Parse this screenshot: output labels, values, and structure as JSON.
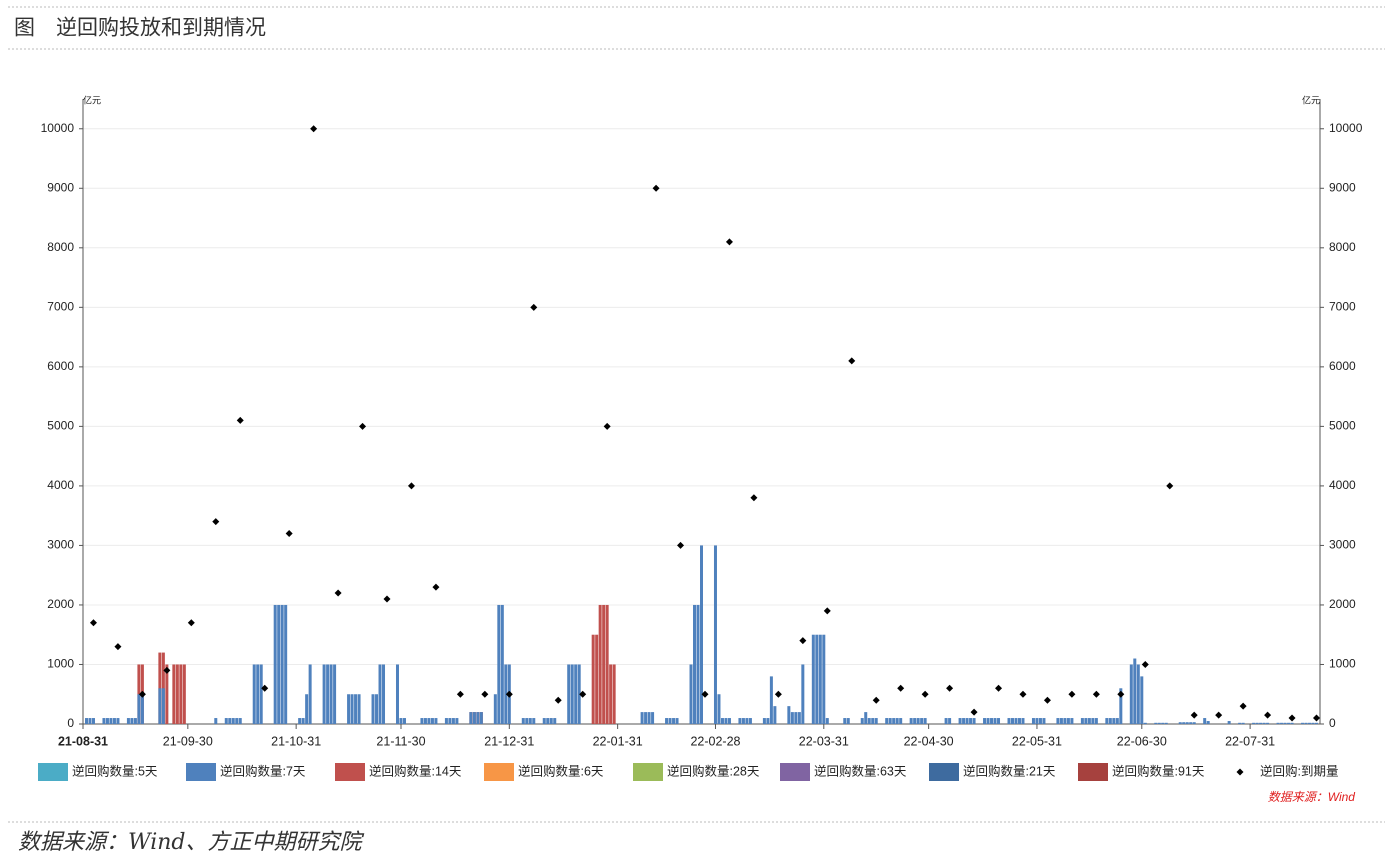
{
  "chart_data": {
    "type": "bar",
    "title": "图　逆回购投放和到期情况",
    "y_label": "亿元",
    "y2_label": "亿元",
    "source_note": "数据来源：Wind",
    "xlim": [
      "21-08-31",
      "22-08-20"
    ],
    "xticks": [
      "21-08-31",
      "21-09-30",
      "21-10-31",
      "21-11-30",
      "21-12-31",
      "22-01-31",
      "22-02-28",
      "22-03-31",
      "22-04-30",
      "22-05-31",
      "22-06-30",
      "22-07-31"
    ],
    "ylim": [
      0,
      10500
    ],
    "yticks": [
      0,
      1000,
      2000,
      3000,
      4000,
      5000,
      6000,
      7000,
      8000,
      9000,
      10000
    ],
    "y2lim": [
      0,
      10500
    ],
    "y2ticks": [
      0,
      1000,
      2000,
      3000,
      4000,
      5000,
      6000,
      7000,
      8000,
      9000,
      10000
    ],
    "grid": true,
    "series": [
      {
        "name": "逆回购数量:5天",
        "color": "#4bacc6",
        "type": "bar",
        "x": [],
        "values": []
      },
      {
        "name": "逆回购数量:7天",
        "color": "#4f81bd",
        "type": "bar",
        "x": [
          "21-09-01",
          "21-09-02",
          "21-09-03",
          "21-09-06",
          "21-09-07",
          "21-09-08",
          "21-09-09",
          "21-09-10",
          "21-09-13",
          "21-09-14",
          "21-09-15",
          "21-09-16",
          "21-09-17",
          "21-09-22",
          "21-09-23",
          "21-10-08",
          "21-10-11",
          "21-10-12",
          "21-10-13",
          "21-10-14",
          "21-10-15",
          "21-10-19",
          "21-10-20",
          "21-10-21",
          "21-10-25",
          "21-10-26",
          "21-10-27",
          "21-10-28",
          "21-11-01",
          "21-11-02",
          "21-11-03",
          "21-11-04",
          "21-11-08",
          "21-11-09",
          "21-11-10",
          "21-11-11",
          "21-11-15",
          "21-11-16",
          "21-11-17",
          "21-11-18",
          "21-11-22",
          "21-11-23",
          "21-11-24",
          "21-11-25",
          "21-11-29",
          "21-11-30",
          "21-12-01",
          "21-12-06",
          "21-12-07",
          "21-12-08",
          "21-12-09",
          "21-12-10",
          "21-12-13",
          "21-12-14",
          "21-12-15",
          "21-12-16",
          "21-12-20",
          "21-12-21",
          "21-12-22",
          "21-12-23",
          "21-12-27",
          "21-12-28",
          "21-12-29",
          "21-12-30",
          "21-12-31",
          "22-01-04",
          "22-01-05",
          "22-01-06",
          "22-01-07",
          "22-01-10",
          "22-01-11",
          "22-01-12",
          "22-01-13",
          "22-01-17",
          "22-01-18",
          "22-01-19",
          "22-01-20",
          "22-02-07",
          "22-02-08",
          "22-02-09",
          "22-02-10",
          "22-02-14",
          "22-02-15",
          "22-02-16",
          "22-02-17",
          "22-02-21",
          "22-02-22",
          "22-02-23",
          "22-02-24",
          "22-02-28",
          "22-03-01",
          "22-03-02",
          "22-03-03",
          "22-03-04",
          "22-03-07",
          "22-03-08",
          "22-03-09",
          "22-03-10",
          "22-03-14",
          "22-03-15",
          "22-03-16",
          "22-03-17",
          "22-03-21",
          "22-03-22",
          "22-03-23",
          "22-03-24",
          "22-03-25",
          "22-03-28",
          "22-03-29",
          "22-03-30",
          "22-03-31",
          "22-04-01",
          "22-04-06",
          "22-04-07",
          "22-04-11",
          "22-04-12",
          "22-04-13",
          "22-04-14",
          "22-04-15",
          "22-04-18",
          "22-04-19",
          "22-04-20",
          "22-04-21",
          "22-04-22",
          "22-04-25",
          "22-04-26",
          "22-04-27",
          "22-04-28",
          "22-04-29",
          "22-05-05",
          "22-05-06",
          "22-05-09",
          "22-05-10",
          "22-05-11",
          "22-05-12",
          "22-05-13",
          "22-05-16",
          "22-05-17",
          "22-05-18",
          "22-05-19",
          "22-05-20",
          "22-05-23",
          "22-05-24",
          "22-05-25",
          "22-05-26",
          "22-05-27",
          "22-05-30",
          "22-05-31",
          "22-06-01",
          "22-06-02",
          "22-06-06",
          "22-06-07",
          "22-06-08",
          "22-06-09",
          "22-06-10",
          "22-06-13",
          "22-06-14",
          "22-06-15",
          "22-06-16",
          "22-06-17",
          "22-06-20",
          "22-06-21",
          "22-06-22",
          "22-06-23",
          "22-06-24",
          "22-06-27",
          "22-06-28",
          "22-06-29",
          "22-06-30",
          "22-07-01",
          "22-07-04",
          "22-07-05",
          "22-07-06",
          "22-07-07",
          "22-07-11",
          "22-07-12",
          "22-07-13",
          "22-07-14",
          "22-07-15",
          "22-07-18",
          "22-07-19",
          "22-07-25",
          "22-07-28",
          "22-07-29",
          "22-08-01",
          "22-08-02",
          "22-08-03",
          "22-08-04",
          "22-08-05",
          "22-08-08",
          "22-08-09",
          "22-08-10",
          "22-08-11",
          "22-08-12",
          "22-08-15",
          "22-08-16",
          "22-08-17",
          "22-08-18",
          "22-08-19"
        ],
        "values": [
          100,
          100,
          100,
          100,
          100,
          100,
          100,
          100,
          100,
          100,
          100,
          500,
          500,
          600,
          600,
          100,
          100,
          100,
          100,
          100,
          100,
          1000,
          1000,
          1000,
          2000,
          2000,
          2000,
          2000,
          100,
          100,
          500,
          1000,
          1000,
          1000,
          1000,
          1000,
          500,
          500,
          500,
          500,
          500,
          500,
          1000,
          1000,
          1000,
          100,
          100,
          100,
          100,
          100,
          100,
          100,
          100,
          100,
          100,
          100,
          200,
          200,
          200,
          200,
          500,
          2000,
          2000,
          1000,
          1000,
          100,
          100,
          100,
          100,
          100,
          100,
          100,
          100,
          1000,
          1000,
          1000,
          1000,
          200,
          200,
          200,
          200,
          100,
          100,
          100,
          100,
          1000,
          2000,
          2000,
          3000,
          3000,
          500,
          100,
          100,
          100,
          100,
          100,
          100,
          100,
          100,
          100,
          800,
          300,
          300,
          200,
          200,
          200,
          1000,
          1500,
          1500,
          1500,
          1500,
          100,
          100,
          100,
          100,
          200,
          100,
          100,
          100,
          100,
          100,
          100,
          100,
          100,
          100,
          100,
          100,
          100,
          100,
          100,
          100,
          100,
          100,
          100,
          100,
          100,
          100,
          100,
          100,
          100,
          100,
          100,
          100,
          100,
          100,
          100,
          100,
          100,
          100,
          100,
          100,
          100,
          100,
          100,
          100,
          100,
          100,
          100,
          100,
          100,
          100,
          100,
          100,
          100,
          600,
          1000,
          1100,
          1000,
          800,
          20,
          20,
          20,
          20,
          20,
          30,
          30,
          30,
          30,
          30,
          100,
          50,
          50,
          20,
          20,
          20,
          20,
          20,
          20,
          20,
          20,
          20,
          20,
          20,
          20,
          20,
          20,
          20,
          20,
          20
        ]
      },
      {
        "name": "逆回购数量:14天",
        "color": "#c0504d",
        "type": "bar",
        "x": [
          "21-09-16",
          "21-09-17",
          "21-09-22",
          "21-09-23",
          "21-09-24",
          "21-09-26",
          "21-09-27",
          "21-09-28",
          "21-09-29",
          "21-12-20",
          "21-12-21",
          "21-12-22",
          "21-12-23",
          "22-01-24",
          "22-01-25",
          "22-01-26",
          "22-01-27",
          "22-01-28",
          "22-01-29",
          "22-01-30"
        ],
        "values": [
          1000,
          1000,
          1200,
          1200,
          1000,
          1000,
          1000,
          1000,
          1000,
          200,
          200,
          200,
          200,
          1500,
          1500,
          2000,
          2000,
          2000,
          1000,
          1000
        ]
      },
      {
        "name": "逆回购数量:6天",
        "color": "#f79646",
        "type": "bar",
        "x": [],
        "values": []
      },
      {
        "name": "逆回购数量:28天",
        "color": "#9bbb59",
        "type": "bar",
        "x": [],
        "values": []
      },
      {
        "name": "逆回购数量:63天",
        "color": "#8064a2",
        "type": "bar",
        "x": [],
        "values": []
      },
      {
        "name": "逆回购数量:21天",
        "color": "#3e6b9f",
        "type": "bar",
        "x": [],
        "values": []
      },
      {
        "name": "逆回购数量:91天",
        "color": "#a6413e",
        "type": "bar",
        "x": [],
        "values": []
      },
      {
        "name": "逆回购:到期量",
        "color": "#000000",
        "type": "scatter",
        "axis": "y2",
        "x": [
          "21-09-03",
          "21-09-10",
          "21-09-17",
          "21-09-24",
          "21-10-01",
          "21-10-08",
          "21-10-15",
          "21-10-22",
          "21-10-29",
          "21-11-05",
          "21-11-12",
          "21-11-19",
          "21-11-26",
          "21-12-03",
          "21-12-10",
          "21-12-17",
          "21-12-24",
          "21-12-31",
          "22-01-07",
          "22-01-14",
          "22-01-21",
          "22-01-28",
          "22-02-11",
          "22-02-18",
          "22-02-25",
          "22-03-04",
          "22-03-11",
          "22-03-18",
          "22-03-25",
          "22-04-01",
          "22-04-08",
          "22-04-15",
          "22-04-22",
          "22-04-29",
          "22-05-06",
          "22-05-13",
          "22-05-20",
          "22-05-27",
          "22-06-03",
          "22-06-10",
          "22-06-17",
          "22-06-24",
          "22-07-01",
          "22-07-08",
          "22-07-15",
          "22-07-22",
          "22-07-29",
          "22-08-05",
          "22-08-12",
          "22-08-19"
        ],
        "values": [
          1700,
          1300,
          500,
          900,
          1700,
          3400,
          5100,
          600,
          3200,
          10000,
          2200,
          5000,
          2100,
          4000,
          2300,
          500,
          500,
          500,
          7000,
          400,
          500,
          5000,
          9000,
          3000,
          500,
          8100,
          3800,
          500,
          1400,
          1900,
          6100,
          400,
          600,
          500,
          600,
          200,
          600,
          500,
          400,
          500,
          500,
          500,
          1000,
          4000,
          150,
          150,
          300,
          150,
          100,
          100
        ]
      }
    ]
  },
  "footer": "数据来源：Wind、方正中期研究院"
}
